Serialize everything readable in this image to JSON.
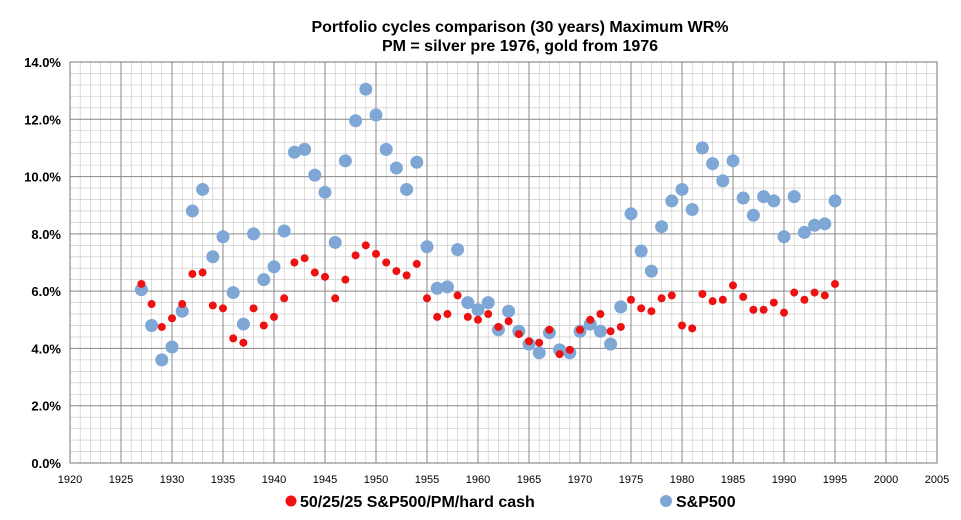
{
  "chart_data": {
    "type": "scatter",
    "title": "Portfolio cycles comparison (30 years) Maximum WR%",
    "subtitle": "PM = silver pre 1976, gold from 1976",
    "xlabel": "",
    "ylabel": "",
    "xlim": [
      1920,
      2005
    ],
    "ylim": [
      0.0,
      14.0
    ],
    "x_major_ticks": [
      1920,
      1925,
      1930,
      1935,
      1940,
      1945,
      1950,
      1955,
      1960,
      1965,
      1970,
      1975,
      1980,
      1985,
      1990,
      1995,
      2000,
      2005
    ],
    "x_tick_labels": [
      "1920",
      "1925",
      "1930",
      "1935",
      "1940",
      "1945",
      "1950",
      "1955",
      "1960",
      "1965",
      "1970",
      "1975",
      "1980",
      "1985",
      "1990",
      "1995",
      "2000",
      "2005"
    ],
    "y_major_ticks": [
      0,
      2,
      4,
      6,
      8,
      10,
      12,
      14
    ],
    "y_tick_labels": [
      "0.0%",
      "2.0%",
      "4.0%",
      "6.0%",
      "8.0%",
      "10.0%",
      "12.0%",
      "14.0%"
    ],
    "grid": true,
    "legend_position": "bottom",
    "x": [
      1927,
      1928,
      1929,
      1930,
      1931,
      1932,
      1933,
      1934,
      1935,
      1936,
      1937,
      1938,
      1939,
      1940,
      1941,
      1942,
      1943,
      1944,
      1945,
      1946,
      1947,
      1948,
      1949,
      1950,
      1951,
      1952,
      1953,
      1954,
      1955,
      1956,
      1957,
      1958,
      1959,
      1960,
      1961,
      1962,
      1963,
      1964,
      1965,
      1966,
      1967,
      1968,
      1969,
      1970,
      1971,
      1972,
      1973,
      1974,
      1975,
      1976,
      1977,
      1978,
      1979,
      1980,
      1981,
      1982,
      1983,
      1984,
      1985,
      1986,
      1987,
      1988,
      1989,
      1990,
      1991,
      1992,
      1993,
      1994,
      1995
    ],
    "series": [
      {
        "name": "50/25/25 S&P500/PM/hard cash",
        "color": "#ee1111",
        "values": [
          6.25,
          5.55,
          4.75,
          5.05,
          5.55,
          6.6,
          6.65,
          5.5,
          5.4,
          4.35,
          4.2,
          5.4,
          4.8,
          5.1,
          5.75,
          7.0,
          7.15,
          6.65,
          6.5,
          5.75,
          6.4,
          7.25,
          7.6,
          7.3,
          7.0,
          6.7,
          6.55,
          6.95,
          5.75,
          5.1,
          5.2,
          5.85,
          5.1,
          5.0,
          5.2,
          4.75,
          4.95,
          4.5,
          4.25,
          4.2,
          4.65,
          3.8,
          3.95,
          4.65,
          5.0,
          5.2,
          4.6,
          4.75,
          5.7,
          5.4,
          5.3,
          5.75,
          5.85,
          4.8,
          4.7,
          5.9,
          5.65,
          5.7,
          6.2,
          5.8,
          5.35,
          5.35,
          5.6,
          5.25,
          5.95,
          5.7,
          5.95,
          5.85,
          6.25
        ]
      },
      {
        "name": "S&P500",
        "color": "#7ea7d6",
        "values": [
          6.05,
          4.8,
          3.6,
          4.05,
          5.3,
          8.8,
          9.55,
          7.2,
          7.9,
          5.95,
          4.85,
          8.0,
          6.4,
          6.85,
          8.1,
          10.85,
          10.95,
          10.05,
          9.45,
          7.7,
          10.55,
          11.95,
          13.05,
          12.15,
          10.95,
          10.3,
          9.55,
          10.5,
          7.55,
          6.1,
          6.15,
          7.45,
          5.6,
          5.35,
          5.6,
          4.65,
          5.3,
          4.6,
          4.15,
          3.85,
          4.55,
          3.95,
          3.85,
          4.6,
          4.85,
          4.6,
          4.15,
          5.45,
          8.7,
          7.4,
          6.7,
          8.25,
          9.15,
          9.55,
          8.85,
          11.0,
          10.45,
          9.85,
          10.55,
          9.25,
          8.65,
          9.3,
          9.15,
          7.9,
          9.3,
          8.05,
          8.3,
          8.35,
          9.15
        ]
      }
    ]
  }
}
